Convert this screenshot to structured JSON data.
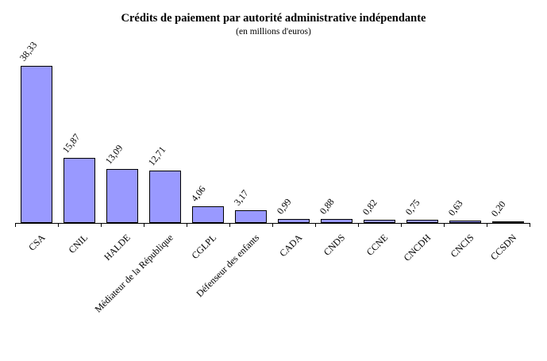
{
  "chart_data": {
    "type": "bar",
    "title": "Crédits de paiement par autorité administrative indépendante",
    "subtitle": "(en millions d'euros)",
    "categories": [
      "CSA",
      "CNIL",
      "HALDE",
      "Médiateur de la République",
      "CGLPL",
      "Défenseur des enfants",
      "CADA",
      "CNDS",
      "CCNE",
      "CNCDH",
      "CNCIS",
      "CCSDN"
    ],
    "values": [
      38.33,
      15.87,
      13.09,
      12.71,
      4.06,
      3.17,
      0.99,
      0.88,
      0.82,
      0.75,
      0.63,
      0.2
    ],
    "value_labels": [
      "38,33",
      "15,87",
      "13,09",
      "12,71",
      "4,06",
      "3,17",
      "0,99",
      "0,88",
      "0,82",
      "0,75",
      "0,63",
      "0,20"
    ],
    "xlabel": "",
    "ylabel": "",
    "unit": "millions d'euros",
    "ylim": [
      0,
      38.33
    ],
    "grid": false,
    "legend": false,
    "bar_color": "#9999FF",
    "bar_border_color": "#000000",
    "axis_color": "#000000",
    "value_label_rotation_deg": -52,
    "category_label_rotation_deg": -45
  }
}
